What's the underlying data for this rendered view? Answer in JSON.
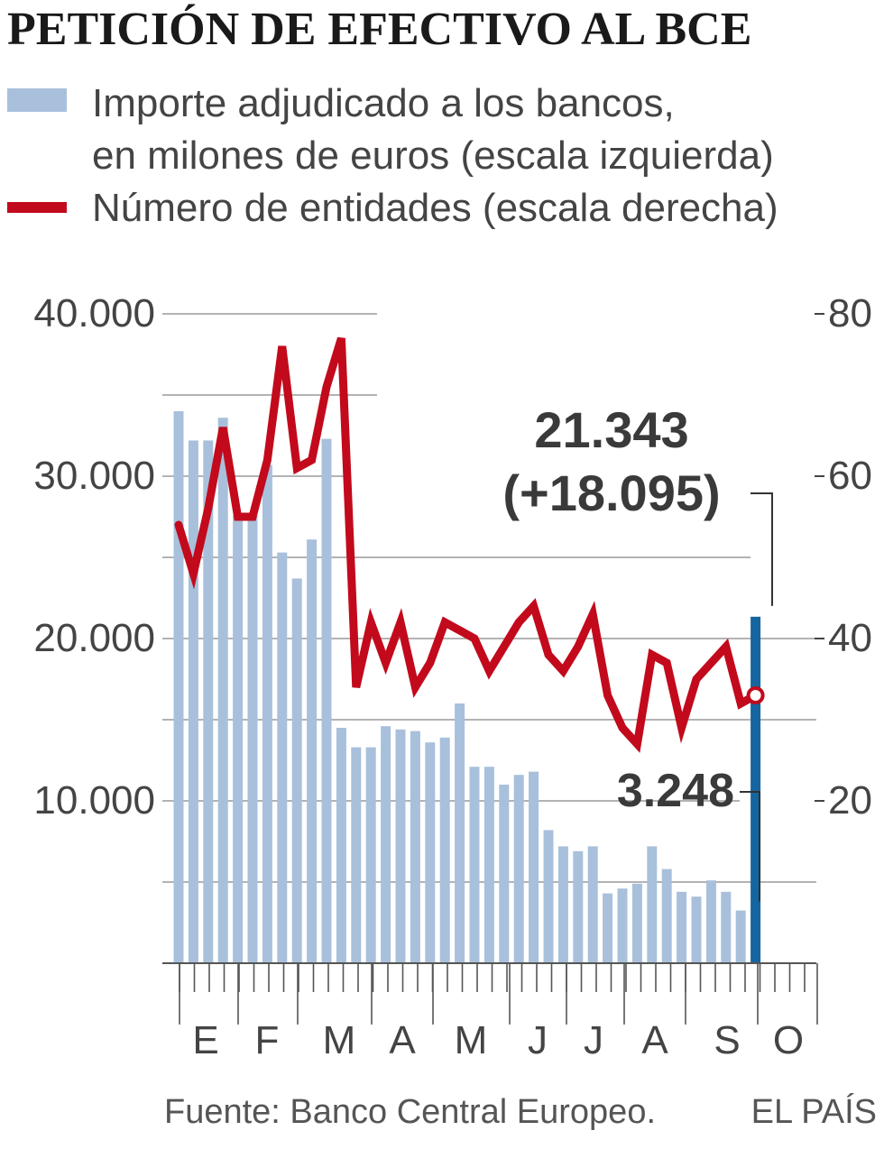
{
  "title": "PETICIÓN DE EFECTIVO AL BCE",
  "legend": {
    "bars_line1": "Importe adjudicado a los bancos,",
    "bars_line2": "en milones de euros (escala izquierda)",
    "line": "Número de entidades (escala derecha)"
  },
  "source": "Fuente: Banco Central Europeo.",
  "brand": "EL PAÍS",
  "annotations": {
    "last_value": "21.343",
    "last_change": "(+18.095)",
    "prev_value": "3.248"
  },
  "colors": {
    "bars": "#a8c0db",
    "highlight_bar": "#1565a0",
    "line": "#c20a1c",
    "grid": "#9a9a9a",
    "text": "#444444"
  },
  "chart_data": {
    "type": "bar",
    "title": "PETICIÓN DE EFECTIVO AL BCE",
    "left_axis": {
      "ticks": [
        40000,
        30000,
        20000,
        10000
      ],
      "tick_labels": [
        "40.000",
        "30.000",
        "20.000",
        "10.000"
      ],
      "ylim": [
        0,
        40000
      ]
    },
    "right_axis": {
      "ticks": [
        80,
        60,
        40,
        20
      ],
      "tick_labels": [
        "80",
        "60",
        "40",
        "20"
      ],
      "ylim": [
        0,
        80
      ]
    },
    "x_month_labels": [
      "E",
      "F",
      "M",
      "A",
      "M",
      "J",
      "J",
      "A",
      "S",
      "O"
    ],
    "grid": true,
    "legend_position": "top",
    "series": [
      {
        "name": "Importe adjudicado a los bancos, en milones de euros (escala izquierda)",
        "type": "bar",
        "axis": "left",
        "values": [
          34000,
          32200,
          32200,
          33600,
          27600,
          27600,
          30700,
          25300,
          23700,
          26100,
          32300,
          14500,
          13300,
          13300,
          14600,
          14400,
          14300,
          13600,
          13900,
          16000,
          12100,
          12100,
          11000,
          11600,
          11800,
          8200,
          7200,
          6900,
          7200,
          4300,
          4600,
          4900,
          7200,
          5800,
          4400,
          4100,
          5100,
          4400,
          3248,
          21343
        ]
      },
      {
        "name": "Número de entidades (escala derecha)",
        "type": "line",
        "axis": "right",
        "values": [
          54,
          48,
          56,
          66,
          55,
          55,
          62,
          76,
          61,
          62,
          71,
          77,
          34,
          42,
          37,
          42,
          34,
          37,
          42,
          41,
          40,
          36,
          39,
          42,
          44,
          38,
          36,
          39,
          43,
          33,
          29,
          27,
          38,
          37,
          29,
          35,
          37,
          39,
          32,
          33
        ]
      }
    ]
  }
}
